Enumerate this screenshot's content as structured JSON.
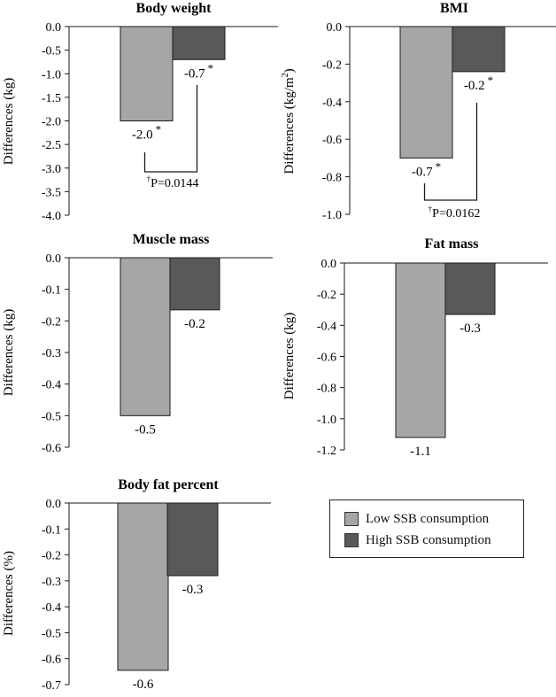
{
  "colors": {
    "low": "#a6a6a6",
    "high": "#595959",
    "stroke": "#1a1a1a"
  },
  "legend": {
    "low_label": "Low SSB consumption",
    "high_label": "High SSB consumption"
  },
  "chart_data": [
    {
      "type": "bar",
      "title": "Body weight",
      "ylabel": "Differences (kg)",
      "ylim": [
        -4.0,
        0.0
      ],
      "ytick_step": 0.5,
      "ytick_decimals": 1,
      "series": [
        {
          "name": "Low SSB consumption",
          "value": -2.0,
          "label": "-2.0",
          "star": "*"
        },
        {
          "name": "High SSB consumption",
          "value": -0.7,
          "label": "-0.7",
          "star": "*"
        }
      ],
      "annotation": {
        "dagger": "†",
        "text": "P=0.0144"
      }
    },
    {
      "type": "bar",
      "title": "BMI",
      "ylabel": "Differences (kg/m",
      "ylabel_sup": "2",
      "ylabel_end": ")",
      "ylim": [
        -1.0,
        0.0
      ],
      "ytick_step": 0.2,
      "ytick_decimals": 1,
      "series": [
        {
          "name": "Low SSB consumption",
          "value": -0.7,
          "label": "-0.7",
          "star": "*"
        },
        {
          "name": "High SSB consumption",
          "value": -0.24,
          "label": "-0.2",
          "star": "*"
        }
      ],
      "annotation": {
        "dagger": "†",
        "text": "P=0.0162"
      }
    },
    {
      "type": "bar",
      "title": "Muscle mass",
      "ylabel": "Differences (kg)",
      "ylim": [
        -0.6,
        0.0
      ],
      "ytick_step": 0.1,
      "ytick_decimals": 1,
      "series": [
        {
          "name": "Low SSB consumption",
          "value": -0.5,
          "label": "-0.5",
          "star": ""
        },
        {
          "name": "High SSB consumption",
          "value": -0.165,
          "label": "-0.2",
          "star": ""
        }
      ]
    },
    {
      "type": "bar",
      "title": "Fat mass",
      "ylabel": "Differences (kg)",
      "ylim": [
        -1.2,
        0.0
      ],
      "ytick_step": 0.2,
      "ytick_decimals": 1,
      "series": [
        {
          "name": "Low SSB consumption",
          "value": -1.12,
          "label": "-1.1",
          "star": ""
        },
        {
          "name": "High SSB consumption",
          "value": -0.33,
          "label": "-0.3",
          "star": ""
        }
      ]
    },
    {
      "type": "bar",
      "title": "Body fat percent",
      "ylabel": "Differences (%)",
      "ylim": [
        -0.7,
        0.0
      ],
      "ytick_step": 0.1,
      "ytick_decimals": 1,
      "series": [
        {
          "name": "Low SSB consumption",
          "value": -0.645,
          "label": "-0.6",
          "star": ""
        },
        {
          "name": "High SSB consumption",
          "value": -0.28,
          "label": "-0.3",
          "star": ""
        }
      ]
    }
  ]
}
